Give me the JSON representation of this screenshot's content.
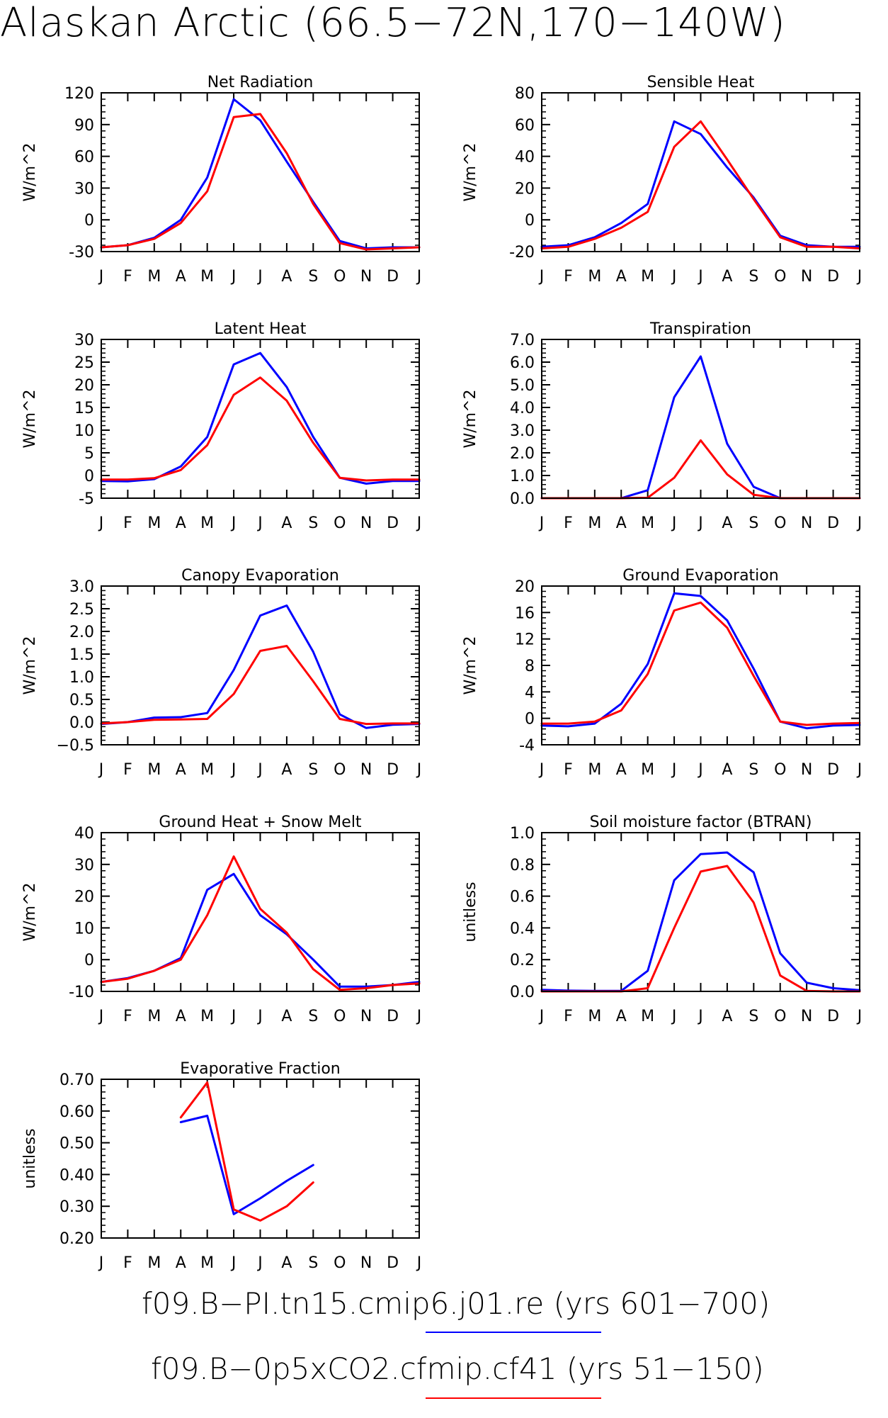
{
  "page": {
    "title": "Alaskan Arctic (66.5−72N,170−140W)"
  },
  "colors": {
    "blue": "#0000ff",
    "red": "#ff0000",
    "axis": "#000000"
  },
  "legend": [
    {
      "label": "f09.B−PI.tn15.cmip6.j01.re (yrs 601−700)",
      "color": "#0000ff"
    },
    {
      "label": "f09.B−0p5xCO2.cfmip.cf41 (yrs 51−150)",
      "color": "#ff0000"
    }
  ],
  "chart_data": [
    {
      "type": "line",
      "title": "Net Radiation",
      "ylabel": "W/m^2",
      "categories": [
        "J",
        "F",
        "M",
        "A",
        "M",
        "J",
        "J",
        "A",
        "S",
        "O",
        "N",
        "D",
        "J"
      ],
      "ylim": [
        -30,
        120
      ],
      "yticks": [
        "-30",
        "0",
        "30",
        "60",
        "90",
        "120"
      ],
      "series": [
        {
          "color": "#0000ff",
          "values": [
            -26,
            -24,
            -17,
            0,
            40,
            114,
            94,
            55,
            17,
            -20,
            -27,
            -26,
            -26
          ]
        },
        {
          "color": "#ff0000",
          "values": [
            -26,
            -24,
            -18,
            -3,
            27,
            97,
            100,
            63,
            15,
            -22,
            -28,
            -27,
            -26
          ]
        }
      ]
    },
    {
      "type": "line",
      "title": "Sensible Heat",
      "ylabel": "W/m^2",
      "categories": [
        "J",
        "F",
        "M",
        "A",
        "M",
        "J",
        "J",
        "A",
        "S",
        "O",
        "N",
        "D",
        "J"
      ],
      "ylim": [
        -20,
        80
      ],
      "yticks": [
        "-20",
        "0",
        "20",
        "40",
        "60",
        "80"
      ],
      "series": [
        {
          "color": "#0000ff",
          "values": [
            -17,
            -16,
            -11,
            -2,
            10,
            62,
            54,
            33,
            14,
            -10,
            -16,
            -17,
            -17
          ]
        },
        {
          "color": "#ff0000",
          "values": [
            -18,
            -17,
            -12,
            -5,
            5,
            46,
            62,
            38,
            13,
            -11,
            -17,
            -17,
            -18
          ]
        }
      ]
    },
    {
      "type": "line",
      "title": "Latent Heat",
      "ylabel": "W/m^2",
      "categories": [
        "J",
        "F",
        "M",
        "A",
        "M",
        "J",
        "J",
        "A",
        "S",
        "O",
        "N",
        "D",
        "J"
      ],
      "ylim": [
        -5,
        30
      ],
      "yticks": [
        "-5",
        "0",
        "5",
        "10",
        "15",
        "20",
        "25",
        "30"
      ],
      "series": [
        {
          "color": "#0000ff",
          "values": [
            -1.2,
            -1.3,
            -0.8,
            2,
            8.5,
            24.5,
            27,
            19.5,
            8.5,
            -0.5,
            -1.8,
            -1.2,
            -1.2
          ]
        },
        {
          "color": "#ff0000",
          "values": [
            -0.9,
            -0.9,
            -0.6,
            1.2,
            6.7,
            17.8,
            21.6,
            16.5,
            7.2,
            -0.5,
            -1.1,
            -0.9,
            -0.9
          ]
        }
      ]
    },
    {
      "type": "line",
      "title": "Transpiration",
      "ylabel": "W/m^2",
      "categories": [
        "J",
        "F",
        "M",
        "A",
        "M",
        "J",
        "J",
        "A",
        "S",
        "O",
        "N",
        "D",
        "J"
      ],
      "ylim": [
        0,
        7
      ],
      "yticks": [
        "0.0",
        "1.0",
        "2.0",
        "3.0",
        "4.0",
        "5.0",
        "6.0",
        "7.0"
      ],
      "series": [
        {
          "color": "#0000ff",
          "values": [
            0,
            0,
            0,
            0,
            0.35,
            4.45,
            6.25,
            2.4,
            0.5,
            0,
            0,
            0,
            0
          ]
        },
        {
          "color": "#ff0000",
          "values": [
            0,
            0,
            0,
            0,
            0.02,
            0.9,
            2.55,
            1.05,
            0.15,
            0,
            0,
            0,
            0
          ]
        }
      ]
    },
    {
      "type": "line",
      "title": "Canopy Evaporation",
      "ylabel": "W/m^2",
      "categories": [
        "J",
        "F",
        "M",
        "A",
        "M",
        "J",
        "J",
        "A",
        "S",
        "O",
        "N",
        "D",
        "J"
      ],
      "ylim": [
        -0.5,
        3
      ],
      "yticks": [
        "−0.5",
        "0.0",
        "0.5",
        "1.0",
        "1.5",
        "2.0",
        "2.5",
        "3.0"
      ],
      "series": [
        {
          "color": "#0000ff",
          "values": [
            -0.04,
            0.0,
            0.1,
            0.11,
            0.2,
            1.15,
            2.35,
            2.57,
            1.55,
            0.17,
            -0.13,
            -0.06,
            -0.04
          ]
        },
        {
          "color": "#ff0000",
          "values": [
            -0.03,
            0.0,
            0.05,
            0.06,
            0.07,
            0.62,
            1.57,
            1.68,
            0.9,
            0.07,
            -0.04,
            -0.03,
            -0.03
          ]
        }
      ]
    },
    {
      "type": "line",
      "title": "Ground Evaporation",
      "ylabel": "W/m^2",
      "categories": [
        "J",
        "F",
        "M",
        "A",
        "M",
        "J",
        "J",
        "A",
        "S",
        "O",
        "N",
        "D",
        "J"
      ],
      "ylim": [
        -4,
        20
      ],
      "yticks": [
        "-4",
        "0",
        "4",
        "8",
        "12",
        "16",
        "20"
      ],
      "series": [
        {
          "color": "#0000ff",
          "values": [
            -1.1,
            -1.2,
            -0.8,
            2.2,
            8.2,
            18.9,
            18.5,
            14.8,
            7.5,
            -0.5,
            -1.5,
            -1.1,
            -1.0
          ]
        },
        {
          "color": "#ff0000",
          "values": [
            -0.8,
            -0.8,
            -0.5,
            1.2,
            6.7,
            16.3,
            17.5,
            13.7,
            6.4,
            -0.5,
            -1.0,
            -0.8,
            -0.7
          ]
        }
      ]
    },
    {
      "type": "line",
      "title": "Ground Heat + Snow Melt",
      "ylabel": "W/m^2",
      "categories": [
        "J",
        "F",
        "M",
        "A",
        "M",
        "J",
        "J",
        "A",
        "S",
        "O",
        "N",
        "D",
        "J"
      ],
      "ylim": [
        -10,
        40
      ],
      "yticks": [
        "-10",
        "0",
        "10",
        "20",
        "30",
        "40"
      ],
      "series": [
        {
          "color": "#0000ff",
          "values": [
            -7,
            -5.8,
            -3.5,
            0.5,
            22,
            27,
            14,
            8,
            0,
            -8.5,
            -8.5,
            -8,
            -7
          ]
        },
        {
          "color": "#ff0000",
          "values": [
            -7,
            -6,
            -3.5,
            0,
            14,
            32.5,
            16,
            8.5,
            -3,
            -9.5,
            -9,
            -8,
            -7.5
          ]
        }
      ]
    },
    {
      "type": "line",
      "title": "Soil moisture factor (BTRAN)",
      "ylabel": "unitless",
      "categories": [
        "J",
        "F",
        "M",
        "A",
        "M",
        "J",
        "J",
        "A",
        "S",
        "O",
        "N",
        "D",
        "J"
      ],
      "ylim": [
        0,
        1
      ],
      "yticks": [
        "0.0",
        "0.2",
        "0.4",
        "0.6",
        "0.8",
        "1.0"
      ],
      "series": [
        {
          "color": "#0000ff",
          "values": [
            0.01,
            0.005,
            0.003,
            0.003,
            0.13,
            0.7,
            0.865,
            0.875,
            0.75,
            0.24,
            0.055,
            0.02,
            0.008
          ]
        },
        {
          "color": "#ff0000",
          "values": [
            0.0,
            0.0,
            0.0,
            0.0,
            0.02,
            0.4,
            0.755,
            0.79,
            0.56,
            0.1,
            0.003,
            0.0,
            0.0
          ]
        }
      ]
    },
    {
      "type": "line",
      "title": "Evaporative Fraction",
      "ylabel": "unitless",
      "categories": [
        "J",
        "F",
        "M",
        "A",
        "M",
        "J",
        "J",
        "A",
        "S",
        "O",
        "N",
        "D",
        "J"
      ],
      "ylim": [
        0.2,
        0.7
      ],
      "yticks": [
        "0.20",
        "0.30",
        "0.40",
        "0.50",
        "0.60",
        "0.70"
      ],
      "series": [
        {
          "color": "#0000ff",
          "values": [
            null,
            null,
            null,
            0.565,
            0.585,
            0.275,
            0.325,
            0.38,
            0.43,
            null,
            null,
            null,
            null
          ]
        },
        {
          "color": "#ff0000",
          "values": [
            null,
            null,
            null,
            0.58,
            0.69,
            0.29,
            0.255,
            0.3,
            0.375,
            null,
            null,
            null,
            null
          ]
        }
      ]
    }
  ]
}
